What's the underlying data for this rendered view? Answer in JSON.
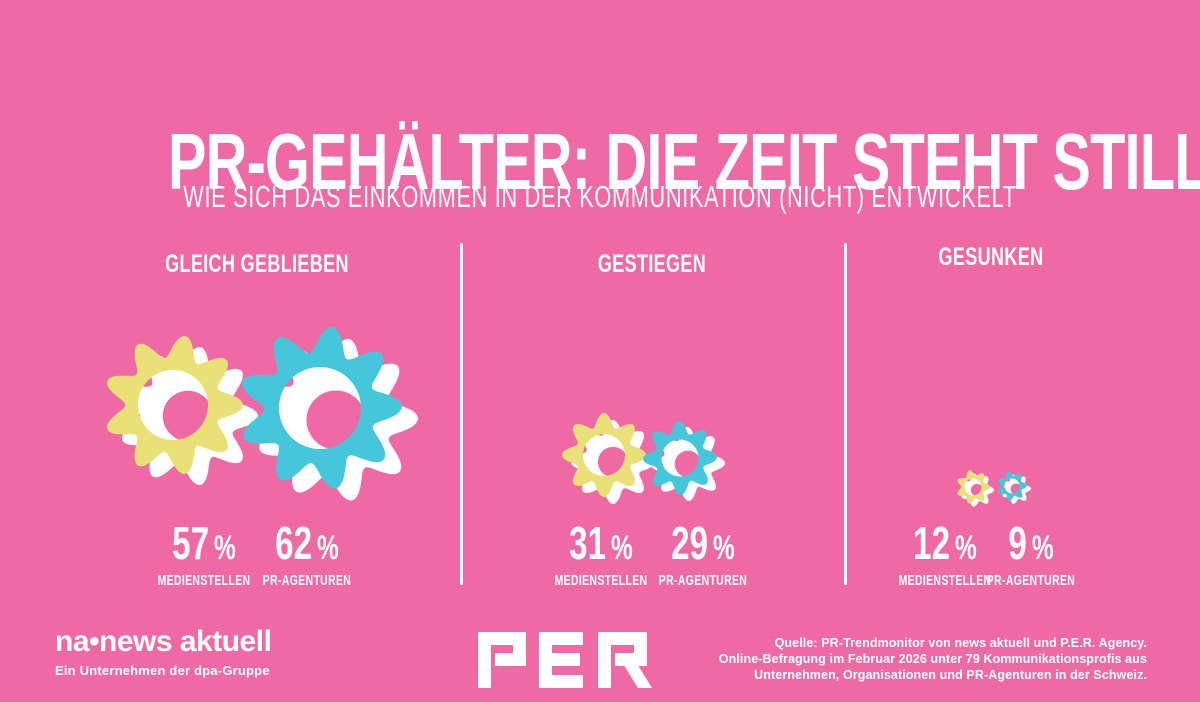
{
  "title": "PR-GEHÄLTER: DIE ZEIT STEHT STILL",
  "subtitle": "WIE SICH DAS EINKOMMEN IN DER KOMMUNIKATION (NICHT) ENTWICKELT",
  "colors": {
    "background": "#ef6aa4",
    "gear_yellow": "#e9e077",
    "gear_teal": "#45c6da",
    "text": "#ffffff"
  },
  "chart_data": {
    "type": "pictogram",
    "icon": "gear",
    "title": "PR-GEHÄLTER: DIE ZEIT STEHT STILL",
    "subtitle": "WIE SICH DAS EINKOMMEN IN DER KOMMUNIKATION (NICHT) ENTWICKELT",
    "categories": [
      "GLEICH GEBLIEBEN",
      "GESTIEGEN",
      "GESUNKEN"
    ],
    "series": [
      {
        "name": "MEDIENSTELLEN",
        "color": "#e9e077",
        "values": [
          57,
          31,
          12
        ]
      },
      {
        "name": "PR-AGENTUREN",
        "color": "#45c6da",
        "values": [
          62,
          29,
          9
        ]
      }
    ],
    "unit": "%",
    "layout": "three columns separated by vertical white rules; gear icon size proportional to value; no legend, series name printed under each value"
  },
  "footer": {
    "brand_left": {
      "name": "na•news aktuell",
      "tagline": "Ein Unternehmen der dpa-Gruppe"
    },
    "brand_center": "PER",
    "source_lines": [
      "Quelle: PR-Trendmonitor von news aktuell und P.E.R. Agency.",
      "Online-Befragung im Februar 2026 unter 79 Kommunikationsprofis aus",
      "Unternehmen, Organisationen und PR-Agenturen in der Schweiz."
    ]
  }
}
